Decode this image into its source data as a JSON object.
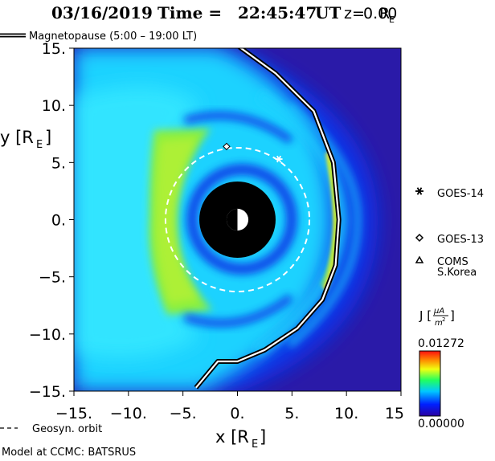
{
  "chart_data": {
    "type": "heatmap",
    "title": {
      "date": "03/16/2019",
      "time_label": "Time =",
      "time": "22:45:47",
      "time_unit": "UT",
      "z_label": "z=",
      "z_value": "0.00",
      "z_unit_base": "R",
      "z_unit_sub": "E"
    },
    "x_axis": {
      "label_base": "x [R",
      "label_sub": "E",
      "label_close": "]",
      "range": [
        -15,
        15
      ],
      "ticks": [
        -15,
        -10,
        -5,
        0,
        5,
        10,
        15
      ],
      "tick_labels": [
        "−15.",
        "−10.",
        "−5.",
        "0.",
        "5.",
        "10.",
        "15"
      ]
    },
    "y_axis": {
      "label_base": "y [R",
      "label_sub": "E",
      "label_close": "]",
      "range": [
        -15,
        15
      ],
      "ticks": [
        15,
        10,
        5,
        0,
        -5,
        -10,
        -15
      ],
      "tick_labels": [
        "15.",
        "10.",
        "5.",
        "0.",
        "−5.",
        "−10.",
        "−15."
      ]
    },
    "legend": {
      "magnetopause": "Magnetopause (5:00 – 19:00 LT)",
      "geosyn": "Geosyn. orbit"
    },
    "satellites": [
      {
        "name": "GOES-14",
        "symbol": "asterisk",
        "x": 3.8,
        "y": 5.3
      },
      {
        "name": "GOES-13",
        "symbol": "diamond",
        "x": -1.0,
        "y": 6.4
      },
      {
        "name": "COMS",
        "name2": "S.Korea",
        "symbol": "triangle"
      }
    ],
    "geosyn_orbit": {
      "center": [
        0,
        0
      ],
      "radius": 6.6
    },
    "earth": {
      "inner_boundary_radius": 3.5,
      "earth_radius": 1.0
    },
    "magnetopause_curve": {
      "x": [
        -0.1,
        3.5,
        7.0,
        8.8,
        9.3,
        9.0,
        7.8,
        5.5,
        2.5,
        0.0,
        -1.8,
        -3.8
      ],
      "y": [
        15.3,
        12.8,
        9.5,
        5.0,
        0.0,
        -4.0,
        -7.0,
        -9.5,
        -11.4,
        -12.4,
        -12.4,
        -14.7
      ]
    },
    "colorbar": {
      "label_base": "J [",
      "label_num": "μA",
      "label_den_base": "m",
      "label_den_sup": "2",
      "label_close": "]",
      "max": "0.01272",
      "min": "0.00000"
    },
    "footer": "Model at CCMC: BATSRUS",
    "colors": {
      "background": "#2a1aa8",
      "deep_blue": "#0c32e6",
      "cyan": "#1ed2ff",
      "light_cyan": "#35e7ff",
      "green": "#8cf03c",
      "yellow": "#fff21e"
    }
  }
}
